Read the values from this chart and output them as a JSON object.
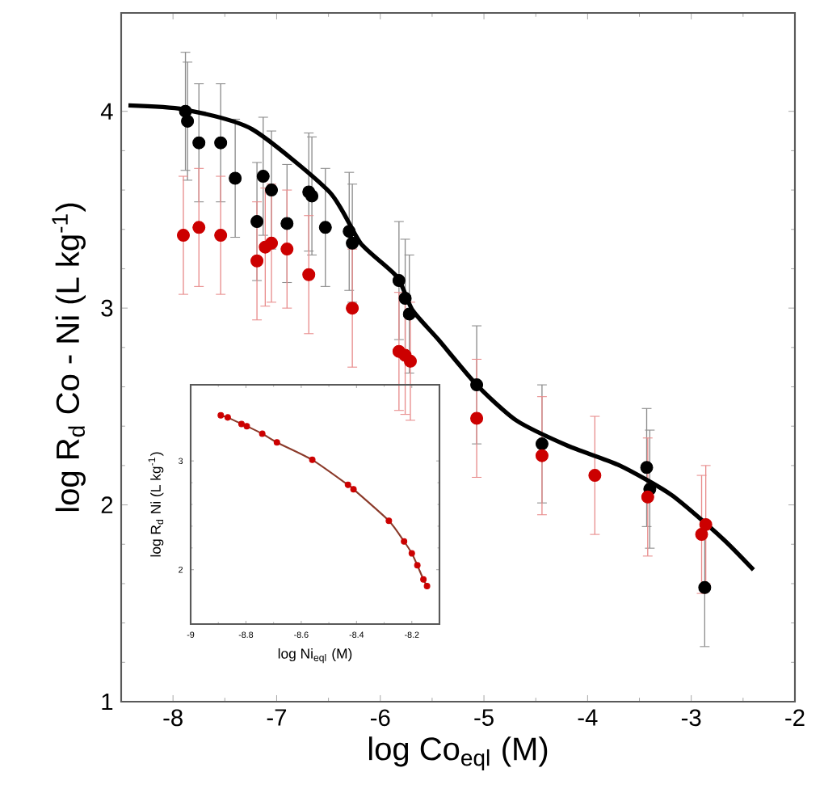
{
  "chart_data": [
    {
      "type": "scatter",
      "xlabel": "log Co$_{eql}$ (M)",
      "ylabel": "log R$_{d}$  Co - Ni (L kg$^{-1}$)",
      "xlim": [
        -8.5,
        -2
      ],
      "ylim": [
        1,
        4.5
      ],
      "xticks": [
        -8,
        -7,
        -6,
        -5,
        -4,
        -3,
        -2
      ],
      "yticks": [
        1,
        2,
        3,
        4
      ],
      "marker": "circle",
      "grid": false,
      "series": [
        {
          "color": "#000000",
          "x": [
            -7.88,
            -7.86,
            -7.75,
            -7.54,
            -7.4,
            -7.19,
            -7.13,
            -7.05,
            -6.9,
            -6.69,
            -6.66,
            -6.53,
            -6.3,
            -6.27,
            -5.82,
            -5.76,
            -5.72,
            -5.07,
            -4.44,
            -3.43,
            -3.4,
            -2.87
          ],
          "values": [
            4.0,
            3.95,
            3.84,
            3.84,
            3.66,
            3.44,
            3.67,
            3.6,
            3.43,
            3.59,
            3.57,
            3.41,
            3.39,
            3.33,
            3.14,
            3.05,
            2.97,
            2.61,
            2.31,
            2.19,
            2.08,
            1.58
          ],
          "errors": [
            0.3,
            0.3,
            0.3,
            0.3,
            0.3,
            0.3,
            0.3,
            0.3,
            0.3,
            0.3,
            0.3,
            0.3,
            0.3,
            0.3,
            0.3,
            0.3,
            0.3,
            0.3,
            0.3,
            0.3,
            0.3,
            0.3
          ]
        },
        {
          "color": "#cc0000",
          "x": [
            -7.9,
            -7.75,
            -7.54,
            -7.19,
            -7.11,
            -7.05,
            -6.9,
            -6.69,
            -6.27,
            -5.82,
            -5.76,
            -5.71,
            -5.07,
            -4.44,
            -3.93,
            -3.42,
            -2.9,
            -2.86
          ],
          "values": [
            3.37,
            3.41,
            3.37,
            3.24,
            3.31,
            3.33,
            3.3,
            3.17,
            3.0,
            2.78,
            2.76,
            2.73,
            2.44,
            2.25,
            2.15,
            2.04,
            1.85,
            1.9
          ],
          "errors": [
            0.3,
            0.3,
            0.3,
            0.3,
            0.3,
            0.3,
            0.3,
            0.3,
            0.3,
            0.3,
            0.3,
            0.3,
            0.3,
            0.3,
            0.3,
            0.3,
            0.3,
            0.3
          ]
        },
        {
          "type": "line",
          "marker": "none",
          "color": "#000000",
          "x": [
            -8.43,
            -7.9,
            -7.24,
            -6.49,
            -6.19,
            -5.84,
            -5.69,
            -5.44,
            -5.07,
            -4.69,
            -4.19,
            -3.69,
            -3.19,
            -2.7,
            -2.4
          ],
          "values": [
            4.03,
            4.01,
            3.91,
            3.59,
            3.33,
            3.16,
            2.99,
            2.84,
            2.61,
            2.43,
            2.3,
            2.2,
            2.05,
            1.83,
            1.67
          ]
        }
      ]
    },
    {
      "type": "scatter",
      "xlabel": "log Ni$_{eql}$ (M)",
      "ylabel": "log R$_{d}$ Ni (L kg$^{-1}$)",
      "xlim": [
        -9,
        -8.1
      ],
      "ylim": [
        1.5,
        3.7
      ],
      "xticks": [
        -9,
        -8.8,
        -8.6,
        -8.4,
        -8.2
      ],
      "yticks": [
        2,
        3
      ],
      "marker": "circle",
      "grid": false,
      "series": [
        {
          "type": "line",
          "marker": "none",
          "color": "#8b3a2a",
          "x": [
            -8.891,
            -8.866,
            -8.816,
            -8.797,
            -8.741,
            -8.688,
            -8.56,
            -8.431,
            -8.411,
            -8.283,
            -8.228,
            -8.2,
            -8.18,
            -8.158,
            -8.145
          ],
          "values": [
            3.42,
            3.4,
            3.34,
            3.32,
            3.25,
            3.17,
            3.01,
            2.78,
            2.74,
            2.45,
            2.26,
            2.15,
            2.04,
            1.91,
            1.85
          ]
        },
        {
          "color": "#cc0000",
          "x": [
            -8.891,
            -8.866,
            -8.816,
            -8.797,
            -8.741,
            -8.688,
            -8.56,
            -8.431,
            -8.411,
            -8.283,
            -8.228,
            -8.2,
            -8.18,
            -8.158,
            -8.145
          ],
          "values": [
            3.42,
            3.4,
            3.34,
            3.32,
            3.25,
            3.17,
            3.01,
            2.78,
            2.74,
            2.45,
            2.26,
            2.15,
            2.04,
            1.91,
            1.85
          ]
        }
      ]
    }
  ]
}
